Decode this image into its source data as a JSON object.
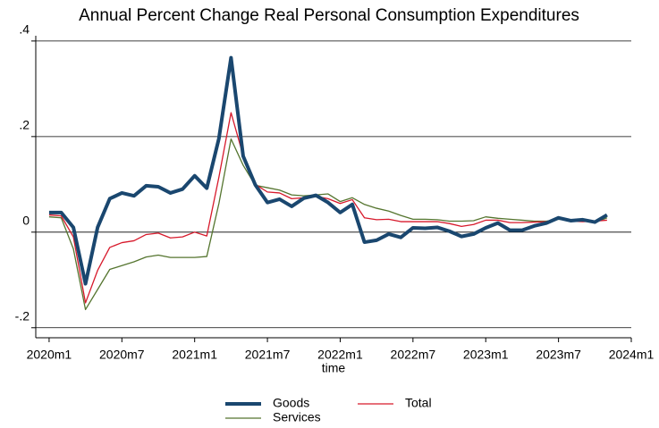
{
  "chart_data": {
    "type": "line",
    "title": "Annual Percent Change Real Personal Consumption Expenditures",
    "x_label": "time",
    "x": [
      720,
      721,
      722,
      723,
      724,
      725,
      726,
      727,
      728,
      729,
      730,
      731,
      732,
      733,
      734,
      735,
      736,
      737,
      738,
      739,
      740,
      741,
      742,
      743,
      744,
      745,
      746,
      747,
      748,
      749,
      750,
      751,
      752,
      753,
      754,
      755,
      756,
      757,
      758,
      759,
      760,
      761,
      762,
      763,
      764,
      765,
      766
    ],
    "xlim": [
      718.9,
      768
    ],
    "xticks": [
      {
        "value": 720,
        "label": "2020m1"
      },
      {
        "value": 726,
        "label": "2020m7"
      },
      {
        "value": 732,
        "label": "2021m1"
      },
      {
        "value": 738,
        "label": "2021m7"
      },
      {
        "value": 744,
        "label": "2022m1"
      },
      {
        "value": 750,
        "label": "2022m7"
      },
      {
        "value": 756,
        "label": "2023m1"
      },
      {
        "value": 762,
        "label": "2023m7"
      },
      {
        "value": 768,
        "label": "2024m1"
      }
    ],
    "ylim": [
      -0.221,
      0.411
    ],
    "yticks": [
      {
        "value": -0.2,
        "label": "-.2"
      },
      {
        "value": 0,
        "label": "0"
      },
      {
        "value": 0.2,
        "label": ".2"
      },
      {
        "value": 0.4,
        "label": ".4"
      }
    ],
    "grid": true,
    "series": [
      {
        "name": "Goods",
        "color": "#1a476f",
        "width": 4,
        "values": [
          0.041,
          0.041,
          0.01,
          -0.108,
          0.01,
          0.07,
          0.082,
          0.076,
          0.097,
          0.095,
          0.082,
          0.09,
          0.118,
          0.092,
          0.196,
          0.365,
          0.159,
          0.099,
          0.062,
          0.069,
          0.054,
          0.071,
          0.077,
          0.062,
          0.041,
          0.058,
          -0.021,
          -0.017,
          -0.004,
          -0.011,
          0.009,
          0.008,
          0.01,
          0.002,
          -0.009,
          -0.004,
          0.009,
          0.019,
          0.004,
          0.004,
          0.013,
          0.019,
          0.03,
          0.024,
          0.026,
          0.021,
          0.036
        ]
      },
      {
        "name": "Total",
        "color": "#d7192b",
        "width": 1.3,
        "values": [
          0.036,
          0.034,
          -0.01,
          -0.148,
          -0.08,
          -0.032,
          -0.022,
          -0.018,
          -0.005,
          -0.002,
          -0.012,
          -0.01,
          0.0,
          -0.008,
          0.115,
          0.25,
          0.16,
          0.1,
          0.084,
          0.082,
          0.07,
          0.072,
          0.075,
          0.07,
          0.06,
          0.068,
          0.03,
          0.026,
          0.027,
          0.022,
          0.022,
          0.022,
          0.022,
          0.018,
          0.012,
          0.016,
          0.025,
          0.025,
          0.02,
          0.02,
          0.021,
          0.022,
          0.028,
          0.023,
          0.022,
          0.023,
          0.025
        ]
      },
      {
        "name": "Services",
        "color": "#55752f",
        "width": 1.3,
        "values": [
          0.032,
          0.03,
          -0.035,
          -0.162,
          -0.12,
          -0.078,
          -0.07,
          -0.062,
          -0.052,
          -0.048,
          -0.053,
          -0.053,
          -0.053,
          -0.051,
          0.06,
          0.195,
          0.14,
          0.098,
          0.093,
          0.088,
          0.078,
          0.076,
          0.078,
          0.08,
          0.064,
          0.072,
          0.058,
          0.05,
          0.044,
          0.035,
          0.027,
          0.027,
          0.026,
          0.023,
          0.023,
          0.024,
          0.032,
          0.029,
          0.027,
          0.025,
          0.023,
          0.023,
          0.027,
          0.025,
          0.025,
          0.02,
          0.03
        ]
      }
    ]
  }
}
